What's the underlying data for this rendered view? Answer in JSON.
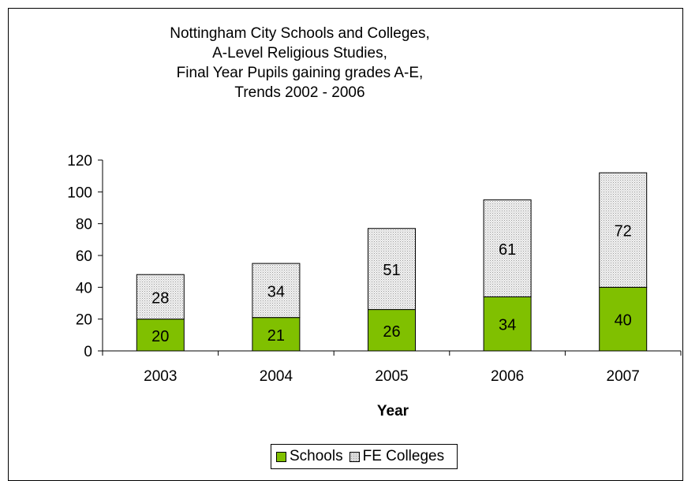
{
  "chart_data": {
    "type": "bar",
    "stacked": true,
    "title_lines": [
      "Nottingham City Schools and Colleges,",
      "A-Level Religious Studies,",
      "Final Year Pupils gaining grades A-E,",
      "Trends 2002 - 2006"
    ],
    "xlabel": "Year",
    "ylabel": "",
    "categories": [
      "2003",
      "2004",
      "2005",
      "2006",
      "2007"
    ],
    "series": [
      {
        "name": "Schools",
        "values": [
          20,
          21,
          26,
          34,
          40
        ],
        "color": "#80c000"
      },
      {
        "name": "FE Colleges",
        "values": [
          28,
          34,
          51,
          61,
          72
        ],
        "color": "#dcdcdc"
      }
    ],
    "ylim": [
      0,
      120
    ],
    "yticks": [
      0,
      20,
      40,
      60,
      80,
      100,
      120
    ],
    "grid": false,
    "legend_position": "bottom"
  }
}
